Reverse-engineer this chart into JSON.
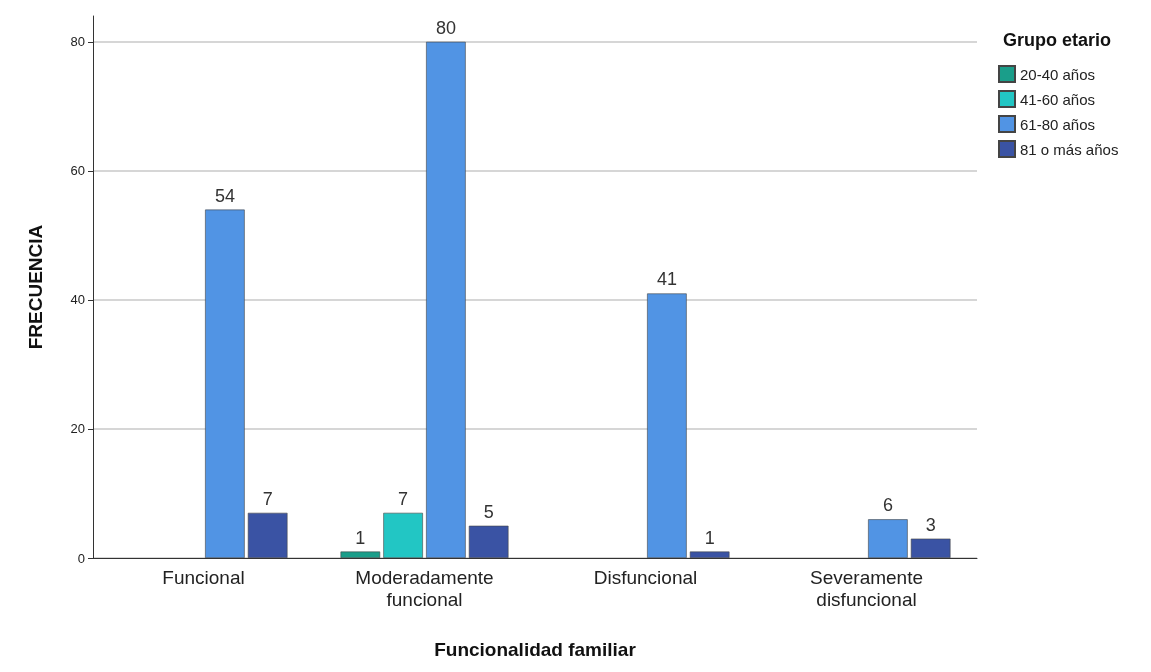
{
  "chart_data": {
    "type": "bar",
    "xlabel": "Funcionalidad familiar",
    "ylabel": "FRECUENCIA",
    "legend_title": "Grupo etario",
    "categories": [
      "Funcional",
      "Moderadamente\nfuncional",
      "Disfuncional",
      "Severamente\ndisfuncional"
    ],
    "series": [
      {
        "name": "20-40 años",
        "color": "#1a9e8a",
        "values": [
          null,
          1,
          null,
          null
        ]
      },
      {
        "name": "41-60 años",
        "color": "#22c6c4",
        "values": [
          null,
          7,
          null,
          null
        ]
      },
      {
        "name": "61-80 años",
        "color": "#5194e4",
        "values": [
          54,
          80,
          41,
          6
        ]
      },
      {
        "name": "81 o más años",
        "color": "#3a53a4",
        "values": [
          7,
          5,
          1,
          3
        ]
      }
    ],
    "ylim": [
      0,
      84
    ],
    "yticks": [
      0,
      20,
      40,
      60,
      80
    ],
    "grid": "y",
    "legend": "top right",
    "data_labels": true
  }
}
